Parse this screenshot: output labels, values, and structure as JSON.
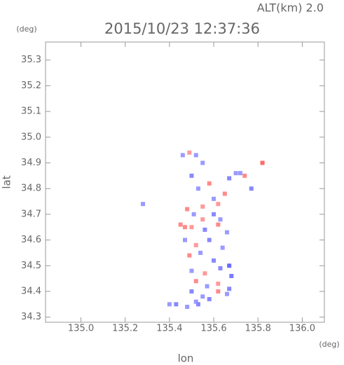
{
  "chart_data": {
    "type": "scatter",
    "title": "2015/10/23 12:37:36",
    "subtitle": "ALT(km) 2.0",
    "x_label": "lon",
    "x_unit": "(deg)",
    "y_label": "lat",
    "y_unit": "(deg)",
    "xlim": [
      134.84,
      136.1
    ],
    "ylim": [
      34.28,
      35.37
    ],
    "xticks": [
      {
        "value": 135,
        "label": "135.0"
      },
      135.2,
      135.4,
      135.6,
      135.8,
      {
        "value": 136,
        "label": "136.0"
      }
    ],
    "yticks": [
      34.3,
      34.4,
      34.5,
      34.6,
      34.7,
      34.8,
      34.9,
      {
        "value": 35,
        "label": "35.0"
      },
      35.1,
      35.2,
      35.3
    ],
    "points": {
      "x": [
        135.46,
        135.49,
        135.52,
        135.55,
        135.5,
        135.58,
        135.53,
        135.67,
        135.7,
        135.74,
        135.77,
        135.82,
        135.65,
        135.6,
        135.62,
        135.72,
        135.48,
        135.51,
        135.55,
        135.6,
        135.63,
        135.45,
        135.5,
        135.56,
        135.62,
        135.66,
        135.47,
        135.52,
        135.58,
        135.64,
        135.49,
        135.54,
        135.6,
        135.67,
        135.5,
        135.56,
        135.63,
        135.68,
        135.52,
        135.57,
        135.62,
        135.67,
        135.5,
        135.55,
        135.62,
        135.66,
        135.52,
        135.58,
        135.48,
        135.53,
        135.4,
        135.43,
        135.47,
        135.55,
        135.28
      ],
      "y": [
        34.93,
        34.94,
        34.93,
        34.9,
        34.85,
        34.82,
        34.8,
        34.84,
        34.86,
        34.85,
        34.8,
        34.9,
        34.78,
        34.76,
        34.74,
        34.86,
        34.72,
        34.7,
        34.73,
        34.7,
        34.68,
        34.66,
        34.65,
        34.64,
        34.66,
        34.63,
        34.6,
        34.58,
        34.6,
        34.57,
        34.54,
        34.55,
        34.52,
        34.5,
        34.48,
        34.47,
        34.49,
        34.46,
        34.44,
        34.42,
        34.43,
        34.41,
        34.4,
        34.38,
        34.4,
        34.39,
        34.36,
        34.37,
        34.34,
        34.35,
        34.35,
        34.35,
        34.65,
        34.68,
        34.74
      ],
      "color": [
        "#9a9aff",
        "#ff9a9a",
        "#9a9aff",
        "#9a9aff",
        "#8888ff",
        "#ff8a8a",
        "#9a9aff",
        "#8888ff",
        "#9a9aff",
        "#ff8a8a",
        "#8888ff",
        "#ff6a6a",
        "#ff8a8a",
        "#9a9aff",
        "#ff9a9a",
        "#9a9aff",
        "#ff8a8a",
        "#9a9aff",
        "#ff9a9a",
        "#8888ff",
        "#9a9aff",
        "#ff8a8a",
        "#ff9a9a",
        "#8888ff",
        "#ff8a8a",
        "#9a9aff",
        "#9a9aff",
        "#ff9a9a",
        "#8888ff",
        "#9a9aff",
        "#ff8a8a",
        "#9a9aff",
        "#8888ff",
        "#6a6aff",
        "#9a9aff",
        "#ff9a9a",
        "#8888ff",
        "#7a7aff",
        "#ff8a8a",
        "#9a9aff",
        "#ff9a9a",
        "#8888ff",
        "#8888ff",
        "#9a9aff",
        "#ff8a8a",
        "#9a9aff",
        "#9a9aff",
        "#8888ff",
        "#9a9aff",
        "#8888ff",
        "#9a9aff",
        "#8888ff",
        "#ff8a8a",
        "#ff9a9a",
        "#9a9aff"
      ]
    }
  }
}
